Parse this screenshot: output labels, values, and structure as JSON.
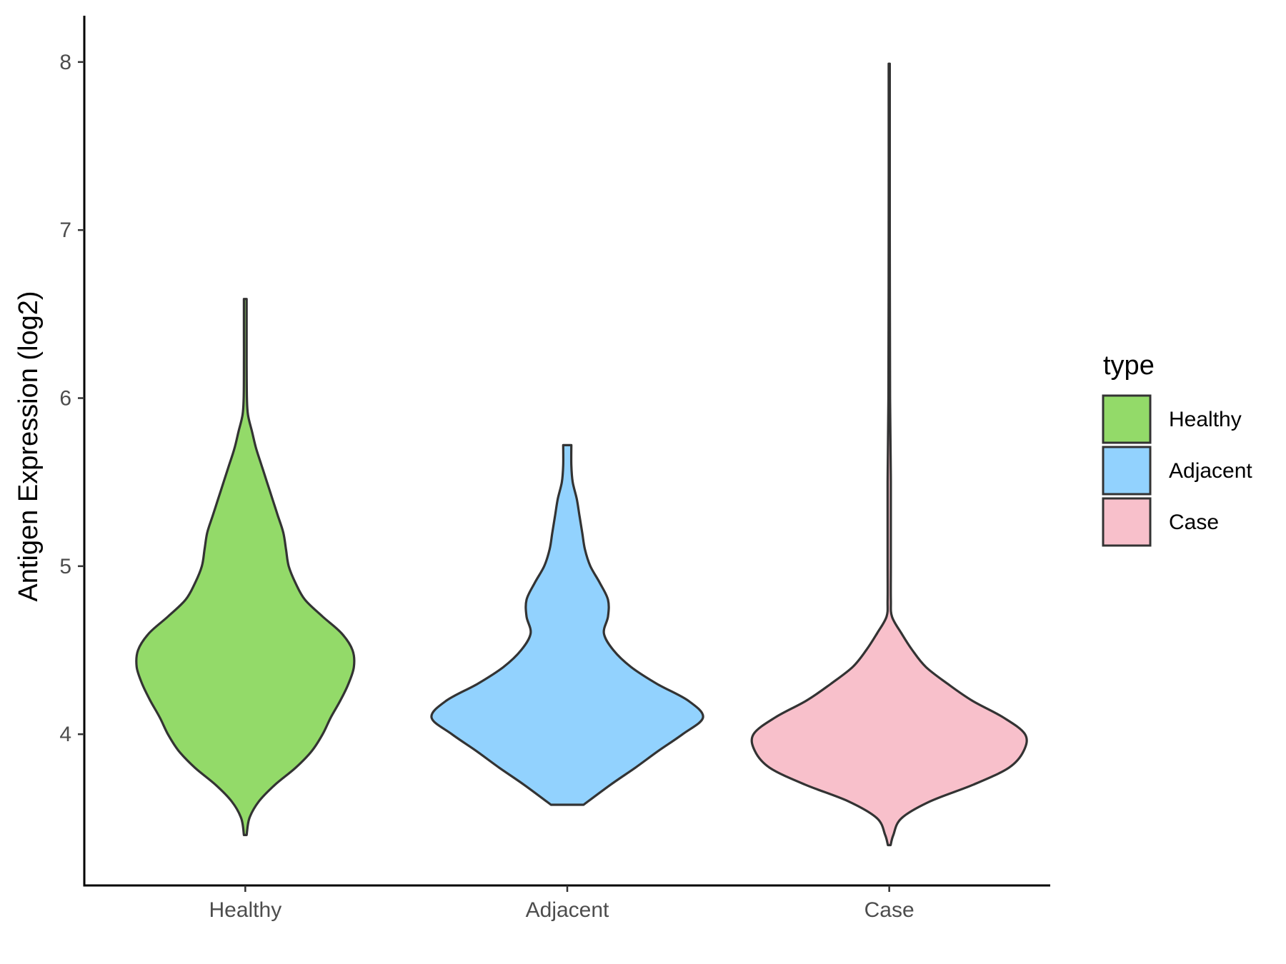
{
  "chart_data": {
    "type": "violin",
    "title": "",
    "xlabel": "",
    "ylabel": "Antigen Expression (log2)",
    "ylim": [
      3.1,
      8.25
    ],
    "yticks": [
      4,
      5,
      6,
      7,
      8
    ],
    "categories": [
      "Healthy",
      "Adjacent",
      "Case"
    ],
    "legend": {
      "title": "type",
      "position": "right",
      "entries": [
        "Healthy",
        "Adjacent",
        "Case"
      ]
    },
    "grid": false,
    "series": [
      {
        "category": "Healthy",
        "color": "#93DA69",
        "min": 3.4,
        "max": 6.59,
        "density_profile": [
          [
            3.4,
            0.01
          ],
          [
            3.5,
            0.03
          ],
          [
            3.6,
            0.1
          ],
          [
            3.7,
            0.22
          ],
          [
            3.8,
            0.37
          ],
          [
            3.9,
            0.49
          ],
          [
            4.0,
            0.57
          ],
          [
            4.1,
            0.63
          ],
          [
            4.2,
            0.7
          ],
          [
            4.3,
            0.76
          ],
          [
            4.4,
            0.8
          ],
          [
            4.5,
            0.79
          ],
          [
            4.6,
            0.71
          ],
          [
            4.7,
            0.57
          ],
          [
            4.8,
            0.44
          ],
          [
            4.9,
            0.37
          ],
          [
            5.0,
            0.32
          ],
          [
            5.1,
            0.3
          ],
          [
            5.2,
            0.28
          ],
          [
            5.3,
            0.24
          ],
          [
            5.4,
            0.2
          ],
          [
            5.5,
            0.16
          ],
          [
            5.6,
            0.12
          ],
          [
            5.7,
            0.08
          ],
          [
            5.8,
            0.05
          ],
          [
            5.9,
            0.02
          ],
          [
            6.0,
            0.012
          ],
          [
            6.2,
            0.01
          ],
          [
            6.4,
            0.01
          ],
          [
            6.59,
            0.01
          ]
        ]
      },
      {
        "category": "Adjacent",
        "color": "#92D2FE",
        "min": 3.58,
        "max": 5.72,
        "density_profile": [
          [
            3.58,
            0.12
          ],
          [
            3.7,
            0.32
          ],
          [
            3.8,
            0.5
          ],
          [
            3.9,
            0.67
          ],
          [
            4.0,
            0.85
          ],
          [
            4.1,
            1.0
          ],
          [
            4.2,
            0.89
          ],
          [
            4.3,
            0.66
          ],
          [
            4.4,
            0.47
          ],
          [
            4.5,
            0.34
          ],
          [
            4.6,
            0.27
          ],
          [
            4.7,
            0.3
          ],
          [
            4.8,
            0.3
          ],
          [
            4.9,
            0.24
          ],
          [
            5.0,
            0.17
          ],
          [
            5.1,
            0.13
          ],
          [
            5.2,
            0.11
          ],
          [
            5.3,
            0.09
          ],
          [
            5.4,
            0.07
          ],
          [
            5.5,
            0.04
          ],
          [
            5.6,
            0.03
          ],
          [
            5.72,
            0.03
          ]
        ]
      },
      {
        "category": "Case",
        "color": "#F8C0CB",
        "min": 3.34,
        "max": 7.99,
        "density_profile": [
          [
            3.34,
            0.01
          ],
          [
            3.4,
            0.03
          ],
          [
            3.5,
            0.09
          ],
          [
            3.6,
            0.3
          ],
          [
            3.7,
            0.62
          ],
          [
            3.8,
            0.88
          ],
          [
            3.9,
            0.99
          ],
          [
            4.0,
            1.0
          ],
          [
            4.1,
            0.84
          ],
          [
            4.2,
            0.61
          ],
          [
            4.3,
            0.43
          ],
          [
            4.4,
            0.27
          ],
          [
            4.5,
            0.17
          ],
          [
            4.6,
            0.09
          ],
          [
            4.7,
            0.02
          ],
          [
            4.8,
            0.012
          ],
          [
            5.0,
            0.012
          ],
          [
            5.2,
            0.012
          ],
          [
            5.5,
            0.012
          ],
          [
            6.0,
            0.006
          ],
          [
            7.0,
            0.004
          ],
          [
            7.99,
            0.004
          ]
        ]
      }
    ]
  }
}
